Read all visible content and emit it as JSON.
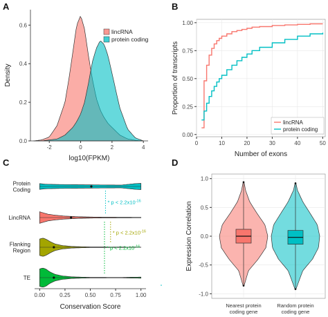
{
  "colors": {
    "red_fill": "#f8766d",
    "cyan_fill": "#00bfc4",
    "olive": "#a3a500",
    "green": "#00ba38",
    "red_line": "#f8766d",
    "cyan_line": "#00bfc4",
    "grid": "#e8e8e8",
    "axis": "#333333"
  },
  "chart_data": [
    {
      "panel": "A",
      "type": "area",
      "xlabel": "log10(FPKM)",
      "ylabel": "Density",
      "xlim": [
        -3.2,
        4.3
      ],
      "ylim": [
        0,
        0.68
      ],
      "xticks": [
        -2,
        0,
        2,
        4
      ],
      "yticks": [
        0.0,
        0.2,
        0.4,
        0.6
      ],
      "grid": false,
      "legend": "top-right",
      "x": [
        -3,
        -2.5,
        -2,
        -1.5,
        -1,
        -0.75,
        -0.5,
        -0.25,
        0,
        0.25,
        0.5,
        0.75,
        1,
        1.25,
        1.5,
        1.75,
        2,
        2.25,
        2.5,
        3,
        3.5,
        4
      ],
      "series": [
        {
          "name": "lincRNA",
          "values": [
            0.0,
            0.005,
            0.02,
            0.08,
            0.2,
            0.32,
            0.46,
            0.6,
            0.65,
            0.58,
            0.44,
            0.32,
            0.22,
            0.16,
            0.12,
            0.09,
            0.07,
            0.05,
            0.03,
            0.01,
            0.003,
            0.0
          ]
        },
        {
          "name": "protein coding",
          "values": [
            0.0,
            0.0,
            0.005,
            0.01,
            0.03,
            0.05,
            0.07,
            0.1,
            0.14,
            0.2,
            0.3,
            0.41,
            0.48,
            0.52,
            0.5,
            0.44,
            0.35,
            0.26,
            0.17,
            0.06,
            0.015,
            0.0
          ]
        }
      ]
    },
    {
      "panel": "B",
      "type": "line",
      "xlabel": "Number of exons",
      "ylabel": "Proportion of transcripts",
      "xlim": [
        0,
        51
      ],
      "ylim": [
        -0.02,
        1.03
      ],
      "xticks": [
        0,
        10,
        20,
        30,
        40,
        50
      ],
      "yticks": [
        0.0,
        0.25,
        0.5,
        0.75,
        1.0
      ],
      "grid": true,
      "legend": "bottom-right",
      "x": [
        2,
        3,
        4,
        5,
        6,
        7,
        8,
        9,
        10,
        12,
        14,
        16,
        18,
        20,
        22,
        25,
        30,
        35,
        40,
        45,
        50
      ],
      "series": [
        {
          "name": "lincRNA",
          "values": [
            0.06,
            0.48,
            0.62,
            0.71,
            0.77,
            0.81,
            0.84,
            0.86,
            0.88,
            0.9,
            0.92,
            0.93,
            0.94,
            0.95,
            0.96,
            0.965,
            0.975,
            0.98,
            0.985,
            0.99,
            0.99
          ]
        },
        {
          "name": "protein coding",
          "values": [
            0.13,
            0.21,
            0.28,
            0.34,
            0.39,
            0.43,
            0.47,
            0.5,
            0.53,
            0.58,
            0.62,
            0.66,
            0.69,
            0.72,
            0.75,
            0.78,
            0.82,
            0.85,
            0.88,
            0.9,
            0.91
          ]
        }
      ]
    },
    {
      "panel": "C",
      "type": "violin",
      "xlabel": "Conservation Score",
      "ylabel": "",
      "xlim": [
        -0.05,
        1.05
      ],
      "xticks": [
        0.0,
        0.25,
        0.5,
        0.75,
        1.0
      ],
      "xtick_labels": [
        "0.00",
        "0.25",
        "0.50",
        "0.75",
        "1.00"
      ],
      "grid": false,
      "categories": [
        "Protein\nCoding",
        "LincRNA",
        "Flanking\nRegion",
        "TE"
      ],
      "medians": [
        0.51,
        0.31,
        0.14,
        0.14
      ],
      "violins": [
        {
          "x": [
            0.0,
            0.05,
            0.2,
            0.4,
            0.6,
            0.8,
            0.95,
            1.0
          ],
          "halfwidth": [
            0.3,
            0.24,
            0.2,
            0.18,
            0.16,
            0.14,
            0.3,
            0.32
          ]
        },
        {
          "x": [
            0.0,
            0.03,
            0.08,
            0.15,
            0.25,
            0.4,
            0.6,
            0.8,
            1.0
          ],
          "halfwidth": [
            0.6,
            0.5,
            0.35,
            0.25,
            0.15,
            0.08,
            0.04,
            0.03,
            0.02
          ]
        },
        {
          "x": [
            0.0,
            0.03,
            0.06,
            0.1,
            0.15,
            0.22,
            0.32,
            0.5,
            0.8,
            1.0
          ],
          "halfwidth": [
            0.85,
            0.95,
            0.85,
            0.6,
            0.35,
            0.18,
            0.08,
            0.03,
            0.02,
            0.01
          ]
        },
        {
          "x": [
            0.0,
            0.03,
            0.06,
            0.1,
            0.15,
            0.22,
            0.32,
            0.5,
            0.8,
            1.0
          ],
          "halfwidth": [
            0.9,
            1.0,
            0.9,
            0.6,
            0.35,
            0.18,
            0.08,
            0.03,
            0.02,
            0.06
          ]
        }
      ],
      "annotations": [
        {
          "text": "* p < 2.2x10-16",
          "base": "* p < 2.2x10",
          "sup": "-16",
          "color": "cyan",
          "x": 0.65,
          "row_from": 0,
          "row_to": 1
        },
        {
          "text": "* p < 2.2x10-16",
          "base": "* p < 2.2x10",
          "sup": "-16",
          "color": "olive",
          "x": 0.7,
          "row_from": 1,
          "row_to": 2
        },
        {
          "text": "* p < 2.2x10-16",
          "base": "* p < 2.2x10",
          "sup": "-16",
          "color": "green",
          "x": 0.64,
          "row_from": 1,
          "row_to": 3
        }
      ]
    },
    {
      "panel": "D",
      "type": "violin",
      "xlabel": "",
      "ylabel": "Expression Correlation",
      "ylim": [
        -1.08,
        1.08
      ],
      "yticks": [
        -1.0,
        -0.5,
        0.0,
        0.5,
        1.0
      ],
      "ytick_labels": [
        "-1.0",
        "-0.5",
        "0.0",
        "0.5",
        "1.0"
      ],
      "grid": true,
      "categories": [
        "Nearest protein\ncoding gene",
        "Random protein\ncoding gene"
      ],
      "boxes": [
        {
          "median": 0.0,
          "q1": -0.12,
          "q3": 0.12,
          "whisker_low": -0.86,
          "whisker_high": 0.94
        },
        {
          "median": -0.02,
          "q1": -0.14,
          "q3": 0.1,
          "whisker_low": -0.92,
          "whisker_high": 0.92
        }
      ],
      "violins": [
        {
          "y": [
            -0.86,
            -0.6,
            -0.4,
            -0.2,
            0.0,
            0.2,
            0.4,
            0.6,
            0.8,
            0.94
          ],
          "halfwidth": [
            0.02,
            0.2,
            0.6,
            0.92,
            1.0,
            0.88,
            0.55,
            0.25,
            0.08,
            0.02
          ]
        },
        {
          "y": [
            -0.92,
            -0.6,
            -0.4,
            -0.2,
            0.0,
            0.2,
            0.4,
            0.6,
            0.8,
            0.92
          ],
          "halfwidth": [
            0.02,
            0.3,
            0.7,
            0.95,
            1.0,
            0.9,
            0.6,
            0.3,
            0.08,
            0.02
          ]
        }
      ]
    }
  ],
  "panel_labels": [
    "A",
    "B",
    "C",
    "D"
  ]
}
